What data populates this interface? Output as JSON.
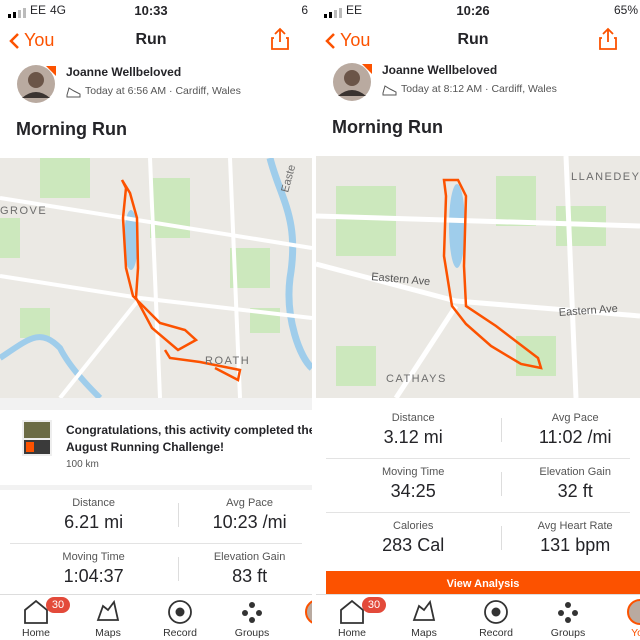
{
  "panels": [
    {
      "status": {
        "carrier": "EE",
        "network": "4G",
        "time": "10:33",
        "battery": "6"
      },
      "nav": {
        "back": "You",
        "title": "Run"
      },
      "athlete": {
        "name": "Joanne Wellbeloved",
        "meta": "Today at 6:56 AM · Cardiff, Wales"
      },
      "activity_title": "Morning Run",
      "map_labels": [
        "GROVE",
        "ROATH",
        "Easte"
      ],
      "challenge": {
        "text": "Congratulations, this activity completed the August Running Challenge!",
        "sub": "100 km"
      },
      "stats": [
        {
          "label": "Distance",
          "value": "6.21 mi"
        },
        {
          "label": "Avg Pace",
          "value": "10:23 /mi"
        },
        {
          "label": "Moving Time",
          "value": "1:04:37"
        },
        {
          "label": "Elevation Gain",
          "value": "83 ft"
        }
      ],
      "tabs": [
        "Home",
        "Maps",
        "Record",
        "Groups"
      ],
      "badge": "30"
    },
    {
      "status": {
        "carrier": "EE",
        "time": "10:26",
        "battery": "65%"
      },
      "nav": {
        "back": "You",
        "title": "Run"
      },
      "athlete": {
        "name": "Joanne Wellbeloved",
        "meta": "Today at 8:12 AM · Cardiff, Wales"
      },
      "activity_title": "Morning Run",
      "map_labels": [
        "LLANEDEYR",
        "Eastern Ave",
        "Eastern Ave",
        "CATHAYS"
      ],
      "stats": [
        {
          "label": "Distance",
          "value": "3.12 mi"
        },
        {
          "label": "Avg Pace",
          "value": "11:02 /mi"
        },
        {
          "label": "Moving Time",
          "value": "34:25"
        },
        {
          "label": "Elevation Gain",
          "value": "32 ft"
        },
        {
          "label": "Calories",
          "value": "283 Cal"
        },
        {
          "label": "Avg Heart Rate",
          "value": "131 bpm"
        }
      ],
      "button": "View Analysis",
      "tabs": [
        "Home",
        "Maps",
        "Record",
        "Groups",
        "You"
      ],
      "badge": "30"
    }
  ]
}
